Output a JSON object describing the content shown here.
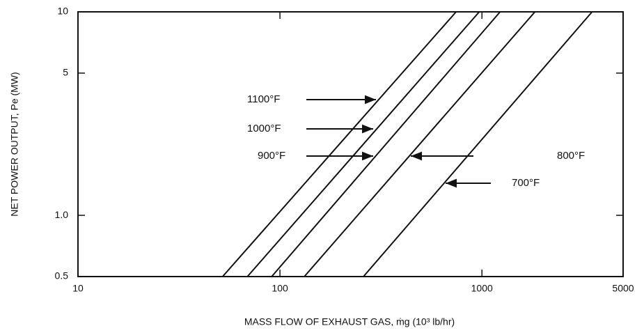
{
  "chart_data": {
    "type": "line",
    "xlabel": "MASS FLOW OF EXHAUST GAS, ṁg (10³ lb/hr)",
    "ylabel": "NET POWER OUTPUT, Pe (MW)",
    "log_x": true,
    "log_y": true,
    "xlim": [
      10,
      5000
    ],
    "ylim": [
      0.5,
      10
    ],
    "xticks": [
      10,
      100,
      1000,
      5000
    ],
    "yticks": [
      0.5,
      {
        "value": 1,
        "label": "1.0"
      },
      5,
      10
    ],
    "series": [
      {
        "name": "1100°F",
        "color": "#111111",
        "x": [
          52,
          745
        ],
        "values": [
          0.5,
          10
        ]
      },
      {
        "name": "1000°F",
        "color": "#111111",
        "x": [
          69,
          970
        ],
        "values": [
          0.5,
          10
        ]
      },
      {
        "name": "900°F",
        "color": "#111111",
        "x": [
          91,
          1230
        ],
        "values": [
          0.5,
          10
        ]
      },
      {
        "name": "800°F",
        "color": "#111111",
        "x": [
          132,
          1830
        ],
        "values": [
          0.5,
          10
        ]
      },
      {
        "name": "700°F",
        "color": "#111111",
        "x": [
          259,
          3510
        ],
        "values": [
          0.5,
          10
        ]
      }
    ]
  }
}
